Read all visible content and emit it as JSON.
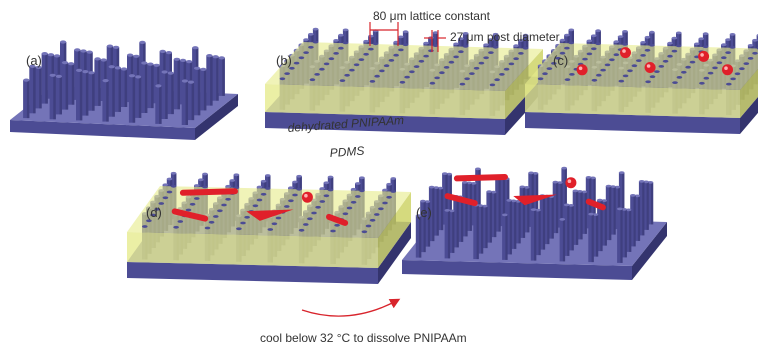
{
  "panels": [
    {
      "label": "(a)",
      "state": "bare PDMS post array"
    },
    {
      "label": "(b)",
      "state": "posts embedded in dehydrated PNIPAAm"
    },
    {
      "label": "(c)",
      "state": "red particles placed on hydrogel surface"
    },
    {
      "label": "(d)",
      "state": "red particles and fragments on hydrogel surface"
    },
    {
      "label": "(e)",
      "state": "hydrogel dissolved, objects rest on posts"
    }
  ],
  "annotations": {
    "lattice_constant": "80 μm lattice constant",
    "post_diameter": "27 μm post diameter",
    "hydrogel_layer": "dehydrated PNIPAAm",
    "base_layer": "PDMS",
    "arrow_caption": "cool below 32 °C to dissolve PNIPAAm"
  },
  "colors": {
    "pdms": "#4c4c94",
    "pdms_dark": "#34346e",
    "pdms_light": "#7474b8",
    "hydrogel": "#e6eb8c",
    "hydrogel_edge": "#c9cf5a",
    "particle": "#e0202a",
    "arrow": "#d8242c"
  }
}
